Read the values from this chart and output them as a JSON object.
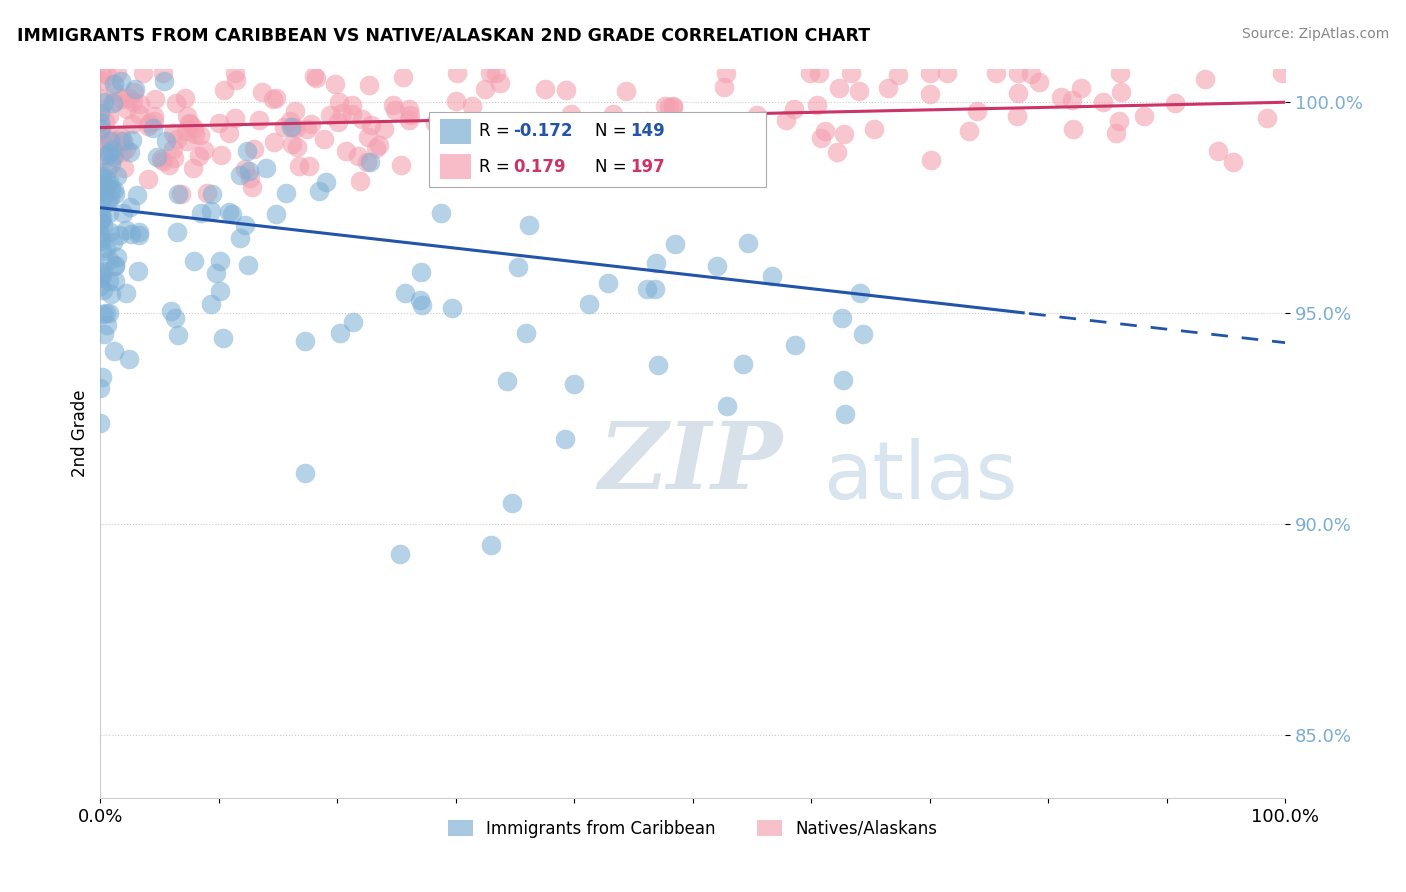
{
  "title": "IMMIGRANTS FROM CARIBBEAN VS NATIVE/ALASKAN 2ND GRADE CORRELATION CHART",
  "source": "Source: ZipAtlas.com",
  "ylabel": "2nd Grade",
  "xlim": [
    0.0,
    1.0
  ],
  "ylim": [
    0.835,
    1.008
  ],
  "yticks": [
    0.85,
    0.9,
    0.95,
    1.0
  ],
  "ytick_labels": [
    "85.0%",
    "90.0%",
    "95.0%",
    "100.0%"
  ],
  "legend_label1": "Immigrants from Caribbean",
  "legend_label2": "Natives/Alaskans",
  "blue_R": -0.172,
  "blue_N": 149,
  "pink_R": 0.179,
  "pink_N": 197,
  "blue_color": "#7BADD4",
  "pink_color": "#F4A0B0",
  "blue_line_color": "#2255AA",
  "pink_line_color": "#CC3366",
  "blue_intercept": 0.975,
  "blue_slope": -0.032,
  "pink_intercept": 0.994,
  "pink_slope": 0.006,
  "watermark_zip": "ZIP",
  "watermark_atlas": "atlas"
}
